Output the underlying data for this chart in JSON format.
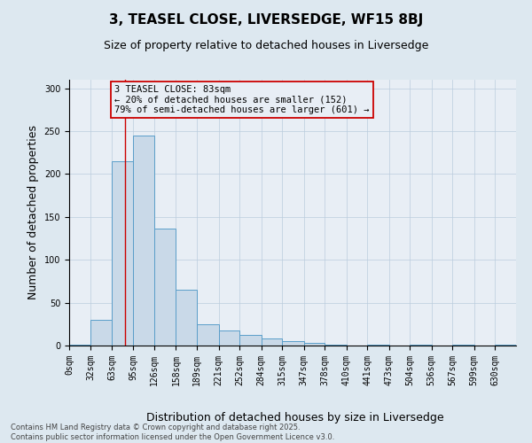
{
  "title": "3, TEASEL CLOSE, LIVERSEDGE, WF15 8BJ",
  "subtitle": "Size of property relative to detached houses in Liversedge",
  "xlabel": "Distribution of detached houses by size in Liversedge",
  "ylabel": "Number of detached properties",
  "bin_labels": [
    "0sqm",
    "32sqm",
    "63sqm",
    "95sqm",
    "126sqm",
    "158sqm",
    "189sqm",
    "221sqm",
    "252sqm",
    "284sqm",
    "315sqm",
    "347sqm",
    "378sqm",
    "410sqm",
    "441sqm",
    "473sqm",
    "504sqm",
    "536sqm",
    "567sqm",
    "599sqm",
    "630sqm"
  ],
  "bin_edges": [
    0,
    32,
    63,
    95,
    126,
    158,
    189,
    221,
    252,
    284,
    315,
    347,
    378,
    410,
    441,
    473,
    504,
    536,
    567,
    599,
    630
  ],
  "bar_heights": [
    1,
    30,
    215,
    245,
    136,
    65,
    25,
    18,
    12,
    8,
    5,
    3,
    1,
    0,
    1,
    0,
    1,
    0,
    1,
    0,
    1
  ],
  "bar_color": "#c9d9e8",
  "bar_edge_color": "#5a9ec9",
  "grid_color": "#bbccdd",
  "vline_x": 83,
  "vline_color": "#cc0000",
  "annotation_text": "3 TEASEL CLOSE: 83sqm\n← 20% of detached houses are smaller (152)\n79% of semi-detached houses are larger (601) →",
  "annotation_box_color": "#cc0000",
  "ylim": [
    0,
    310
  ],
  "yticks": [
    0,
    50,
    100,
    150,
    200,
    250,
    300
  ],
  "footer": "Contains HM Land Registry data © Crown copyright and database right 2025.\nContains public sector information licensed under the Open Government Licence v3.0.",
  "background_color": "#dde8f0",
  "plot_bg_color": "#e8eef5",
  "title_fontsize": 11,
  "subtitle_fontsize": 9,
  "tick_fontsize": 7,
  "ylabel_fontsize": 9,
  "xlabel_fontsize": 9,
  "annotation_fontsize": 7.5,
  "footer_fontsize": 6
}
